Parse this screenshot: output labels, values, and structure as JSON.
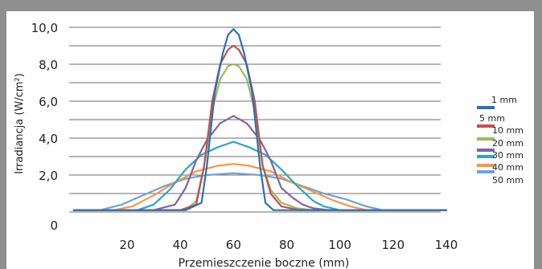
{
  "chart_data": {
    "type": "line",
    "title": "",
    "xlabel": "Przemieszczenie boczne (mm)",
    "ylabel": "Irradiancja (W/cm²)",
    "xlim": [
      0,
      140
    ],
    "x_ticks": [
      20,
      40,
      60,
      80,
      100,
      120,
      140
    ],
    "y_ticks": [
      {
        "label": "10,0",
        "value": 10.0
      },
      {
        "label": "8,0",
        "value": 8.0
      },
      {
        "label": "6,0",
        "value": 6.0
      },
      {
        "label": "4,0",
        "value": 4.0
      },
      {
        "label": "2,0",
        "value": 2.0
      },
      {
        "label": "0",
        "value": 0
      }
    ],
    "grid": true,
    "legend_position": "right",
    "series": [
      {
        "name": "1 mm",
        "color": "#2e6fb5",
        "x": [
          0,
          42,
          48,
          50,
          53,
          56,
          58,
          60,
          62,
          64,
          67,
          70,
          72,
          75,
          80,
          140
        ],
        "y": [
          0.1,
          0.1,
          0.5,
          2.5,
          6.5,
          8.6,
          9.6,
          9.9,
          9.6,
          8.6,
          6.5,
          2.5,
          0.5,
          0.1,
          0.1,
          0.1
        ]
      },
      {
        "name": "5 mm",
        "color": "#c0504d",
        "x": [
          0,
          40,
          46,
          49,
          52,
          55,
          58,
          60,
          62,
          65,
          68,
          71,
          74,
          78,
          85,
          140
        ],
        "y": [
          0.1,
          0.1,
          0.4,
          2.5,
          6.0,
          8.0,
          8.8,
          9.0,
          8.8,
          8.0,
          6.0,
          2.5,
          1.0,
          0.3,
          0.1,
          0.1
        ]
      },
      {
        "name": "10 mm",
        "color": "#9bbb59",
        "x": [
          0,
          42,
          46,
          49,
          52,
          55,
          58,
          60,
          62,
          65,
          68,
          71,
          74,
          78,
          84,
          90,
          140
        ],
        "y": [
          0.1,
          0.1,
          0.6,
          2.5,
          5.5,
          7.2,
          7.9,
          8.0,
          7.9,
          7.2,
          5.5,
          2.5,
          1.2,
          0.5,
          0.2,
          0.1,
          0.1
        ]
      },
      {
        "name": "20 mm",
        "color": "#8064a2",
        "x": [
          0,
          30,
          38,
          42,
          46,
          50,
          55,
          60,
          65,
          70,
          74,
          78,
          82,
          86,
          90,
          96,
          140
        ],
        "y": [
          0.1,
          0.1,
          0.4,
          1.3,
          2.8,
          3.9,
          4.8,
          5.2,
          4.8,
          3.9,
          2.8,
          1.3,
          0.8,
          0.4,
          0.2,
          0.1,
          0.1
        ]
      },
      {
        "name": "30 mm",
        "color": "#2ca5c4",
        "x": [
          0,
          24,
          30,
          36,
          42,
          48,
          54,
          60,
          66,
          72,
          78,
          84,
          90,
          94,
          100,
          140
        ],
        "y": [
          0.1,
          0.1,
          0.4,
          1.2,
          2.3,
          3.1,
          3.5,
          3.8,
          3.5,
          3.1,
          2.3,
          1.4,
          0.6,
          0.3,
          0.1,
          0.1
        ]
      },
      {
        "name": "40 mm",
        "color": "#f79646",
        "x": [
          0,
          15,
          22,
          30,
          38,
          46,
          54,
          60,
          66,
          74,
          82,
          90,
          98,
          104,
          110,
          140
        ],
        "y": [
          0.1,
          0.1,
          0.3,
          0.9,
          1.6,
          2.2,
          2.5,
          2.6,
          2.5,
          2.2,
          1.6,
          1.1,
          0.6,
          0.3,
          0.1,
          0.1
        ]
      },
      {
        "name": "50 mm",
        "color": "#6fa3d4",
        "x": [
          0,
          10,
          18,
          26,
          34,
          42,
          50,
          60,
          70,
          78,
          86,
          94,
          102,
          110,
          116,
          140
        ],
        "y": [
          0.1,
          0.1,
          0.4,
          0.9,
          1.4,
          1.8,
          2.0,
          2.1,
          2.0,
          1.8,
          1.4,
          1.0,
          0.7,
          0.3,
          0.1,
          0.1
        ]
      }
    ]
  }
}
